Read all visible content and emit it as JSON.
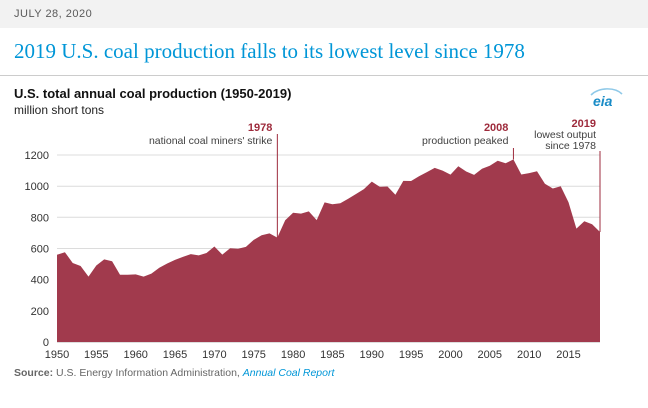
{
  "header": {
    "date": "JULY 28, 2020",
    "title": "2019 U.S. coal production falls to its lowest level since 1978"
  },
  "chart": {
    "title": "U.S. total annual coal production (1950-2019)",
    "units": "million short tons",
    "logo_text": "eia",
    "annotations": {
      "a1978": {
        "year": "1978",
        "text": "national coal miners' strike"
      },
      "a2008": {
        "year": "2008",
        "text": "production peaked"
      },
      "a2019": {
        "year": "2019",
        "line1": "lowest output",
        "line2": "since 1978"
      }
    }
  },
  "source": {
    "label": "Source:",
    "org": " U.S. Energy Information Administration, ",
    "link": "Annual Coal Report"
  },
  "colors": {
    "area": "#a13a4d",
    "annotation": "#9e2b3c",
    "title_blue": "#0096d7",
    "gridline": "#dcdcdc"
  },
  "chart_data": {
    "type": "area",
    "title": "U.S. total annual coal production (1950-2019)",
    "ylabel": "million short tons",
    "ylim": [
      0,
      1200
    ],
    "yticks": [
      0,
      200,
      400,
      600,
      800,
      1000,
      1200
    ],
    "xticks": [
      1950,
      1955,
      1960,
      1965,
      1970,
      1975,
      1980,
      1985,
      1990,
      1995,
      2000,
      2005,
      2010,
      2015
    ],
    "grid": true,
    "years": [
      1950,
      1951,
      1952,
      1953,
      1954,
      1955,
      1956,
      1957,
      1958,
      1959,
      1960,
      1961,
      1962,
      1963,
      1964,
      1965,
      1966,
      1967,
      1968,
      1969,
      1970,
      1971,
      1972,
      1973,
      1974,
      1975,
      1976,
      1977,
      1978,
      1979,
      1980,
      1981,
      1982,
      1983,
      1984,
      1985,
      1986,
      1987,
      1988,
      1989,
      1990,
      1991,
      1992,
      1993,
      1994,
      1995,
      1996,
      1997,
      1998,
      1999,
      2000,
      2001,
      2002,
      2003,
      2004,
      2005,
      2006,
      2007,
      2008,
      2009,
      2010,
      2011,
      2012,
      2013,
      2014,
      2015,
      2016,
      2017,
      2018,
      2019
    ],
    "values": [
      560,
      576,
      507,
      488,
      420,
      491,
      530,
      518,
      431,
      432,
      434,
      420,
      439,
      477,
      504,
      527,
      546,
      564,
      556,
      571,
      613,
      561,
      602,
      599,
      610,
      655,
      685,
      697,
      670,
      781,
      830,
      824,
      838,
      782,
      896,
      884,
      890,
      919,
      950,
      981,
      1029,
      996,
      998,
      945,
      1034,
      1033,
      1064,
      1090,
      1117,
      1100,
      1074,
      1128,
      1094,
      1072,
      1112,
      1131,
      1163,
      1147,
      1172,
      1075,
      1084,
      1096,
      1016,
      985,
      1000,
      897,
      728,
      775,
      756,
      706
    ],
    "annotated_points": [
      {
        "year": 1978,
        "value": 670,
        "note": "national coal miners' strike"
      },
      {
        "year": 2008,
        "value": 1172,
        "note": "production peaked"
      },
      {
        "year": 2019,
        "value": 706,
        "note": "lowest output since 1978"
      }
    ]
  }
}
